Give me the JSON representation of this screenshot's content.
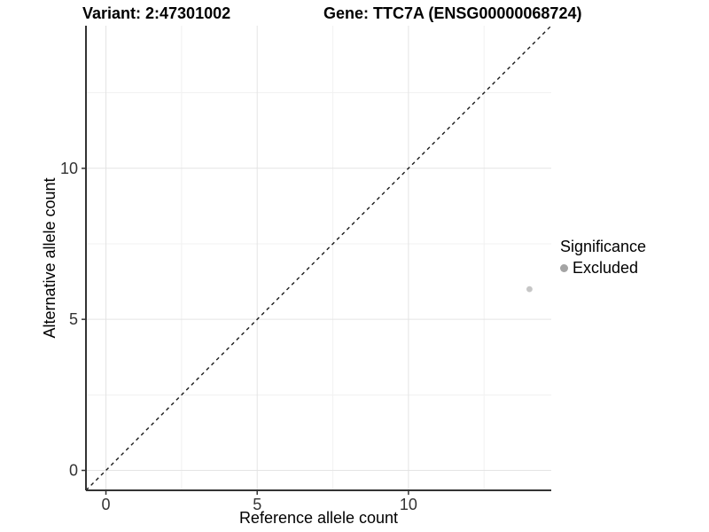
{
  "header": {
    "variant_title": "Variant: 2:47301002",
    "gene_title": "Gene: TTC7A (ENSG00000068724)"
  },
  "chart_data": {
    "type": "scatter",
    "xlabel": "Reference allele count",
    "ylabel": "Alternative allele count",
    "xlim": [
      -0.66,
      14.72
    ],
    "ylim": [
      -0.66,
      14.72
    ],
    "x_major_ticks": [
      0,
      5,
      10
    ],
    "y_major_ticks": [
      0,
      5,
      10
    ],
    "x_minor_ticks": [
      2.5,
      7.5,
      12.5
    ],
    "y_minor_ticks": [
      2.5,
      7.5,
      12.5
    ],
    "grid": "major+minor, light gray on white",
    "points": [
      {
        "x": 14,
        "y": 6,
        "series": "Excluded"
      }
    ],
    "reference_line": {
      "slope": 1,
      "intercept": 0,
      "style": "dashed",
      "color": "#1a1a1a"
    },
    "legend": {
      "title": "Significance",
      "position": "right",
      "entries": [
        {
          "label": "Excluded",
          "color": "#a4a4a4"
        }
      ]
    }
  },
  "colors": {
    "background": "#ffffff",
    "axis_line": "#333333",
    "tick_mark": "#333333",
    "tick_label": "#333333",
    "grid_major": "#e4e4e4",
    "grid_minor": "#f1f1f1",
    "point_fill": "#c6c6c6",
    "legend_key_fill": "#a4a4a4",
    "dashed_line": "#1a1a1a"
  }
}
